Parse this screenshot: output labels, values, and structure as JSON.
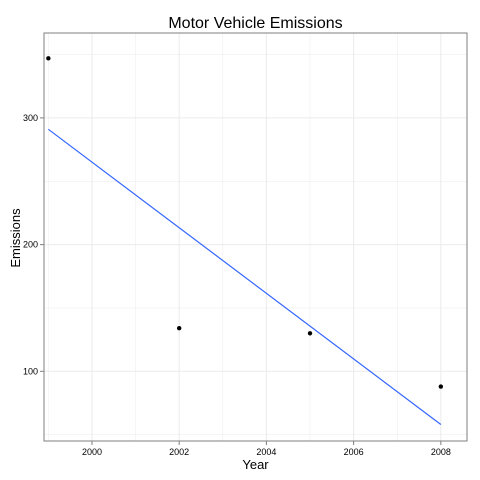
{
  "chart_data": {
    "type": "scatter",
    "title": "Motor Vehicle Emissions",
    "xlabel": "Year",
    "ylabel": "Emissions",
    "xlim": [
      1998.9,
      2008.6
    ],
    "ylim": [
      45,
      367
    ],
    "x_ticks": [
      2000,
      2002,
      2004,
      2006,
      2008
    ],
    "x_minor_ticks": [
      1999,
      2001,
      2003,
      2005,
      2007
    ],
    "y_ticks": [
      100,
      200,
      300
    ],
    "y_minor_ticks": [
      50,
      150,
      250,
      350
    ],
    "grid": true,
    "series": [
      {
        "points": [
          {
            "x": 1999,
            "y": 347
          },
          {
            "x": 2002,
            "y": 134
          },
          {
            "x": 2005,
            "y": 130
          },
          {
            "x": 2008,
            "y": 88
          }
        ]
      }
    ],
    "trendline": {
      "type": "linear",
      "color": "#3366ff",
      "x": [
        1999,
        2008
      ],
      "y": [
        291,
        58
      ]
    },
    "point_color": "#000000",
    "grid_color": "#ebebeb",
    "panel_border_color": "#7f7f7f"
  }
}
